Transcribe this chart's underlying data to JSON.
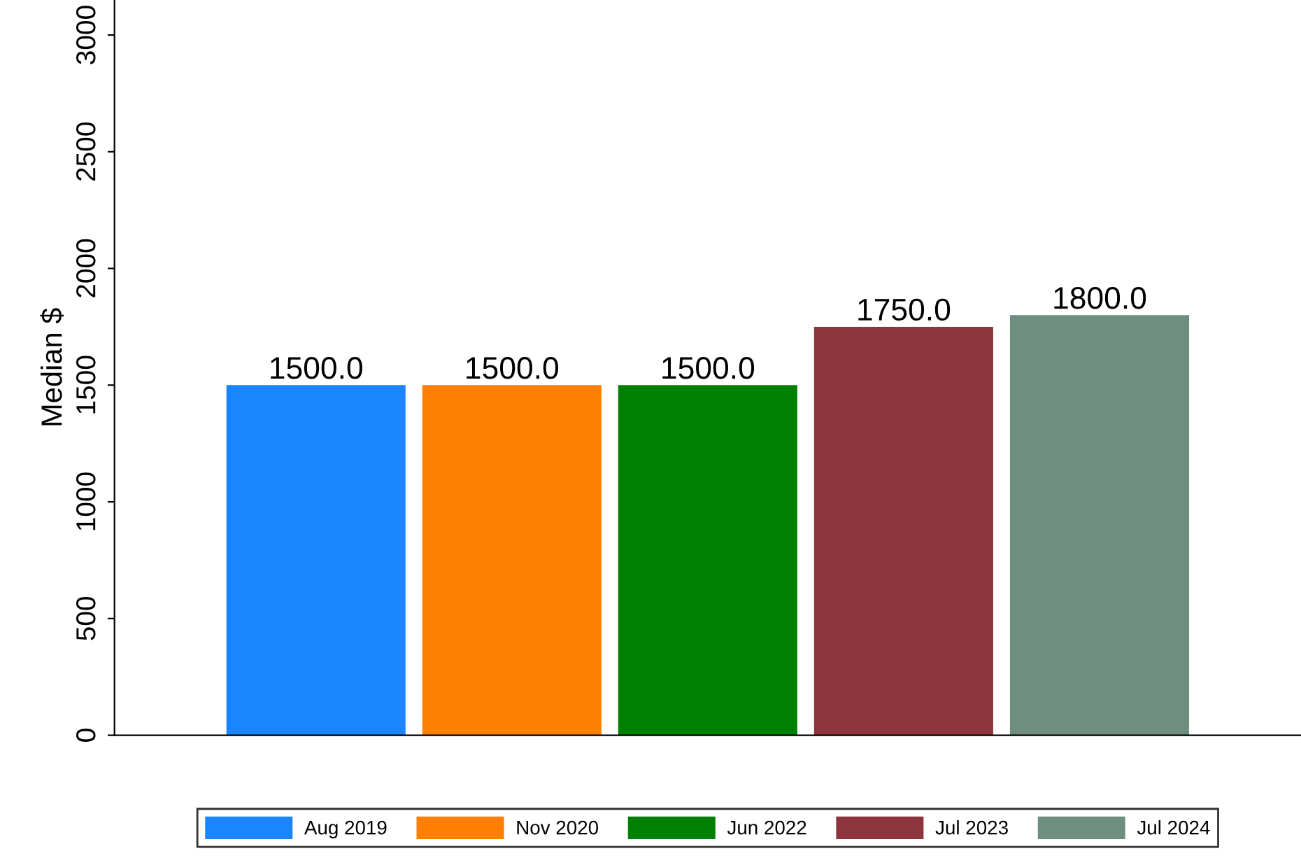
{
  "chart_data": {
    "type": "bar",
    "ylabel": "Median $",
    "categories": [
      null
    ],
    "series": [
      {
        "name": "Aug 2019",
        "color": "#1a85ff",
        "values": [
          1500.0
        ],
        "value_labels": [
          "1500.0"
        ]
      },
      {
        "name": "Nov 2020",
        "color": "#ff7f00",
        "values": [
          1500.0
        ],
        "value_labels": [
          "1500.0"
        ]
      },
      {
        "name": "Jun 2022",
        "color": "#008000",
        "values": [
          1500.0
        ],
        "value_labels": [
          "1500.0"
        ]
      },
      {
        "name": "Jul 2023",
        "color": "#8e343c",
        "values": [
          1750.0
        ],
        "value_labels": [
          "1750.0"
        ]
      },
      {
        "name": "Jul 2024",
        "color": "#6e8e80",
        "values": [
          1800.0
        ],
        "value_labels": [
          "1800.0"
        ]
      }
    ],
    "ylim": [
      0,
      3150
    ],
    "yticks": [
      0,
      500,
      1000,
      1500,
      2000,
      2500,
      3000
    ],
    "grid": false,
    "legend": "bottom"
  }
}
